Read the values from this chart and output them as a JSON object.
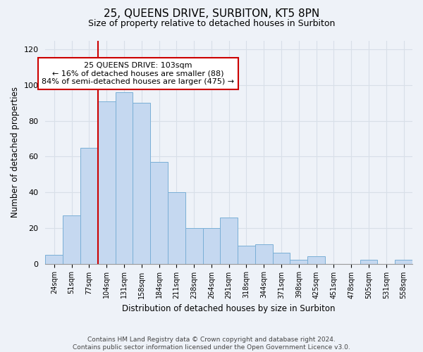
{
  "title": "25, QUEENS DRIVE, SURBITON, KT5 8PN",
  "subtitle": "Size of property relative to detached houses in Surbiton",
  "xlabel": "Distribution of detached houses by size in Surbiton",
  "ylabel": "Number of detached properties",
  "bar_labels": [
    "24sqm",
    "51sqm",
    "77sqm",
    "104sqm",
    "131sqm",
    "158sqm",
    "184sqm",
    "211sqm",
    "238sqm",
    "264sqm",
    "291sqm",
    "318sqm",
    "344sqm",
    "371sqm",
    "398sqm",
    "425sqm",
    "451sqm",
    "478sqm",
    "505sqm",
    "531sqm",
    "558sqm"
  ],
  "bar_values": [
    5,
    27,
    65,
    91,
    96,
    90,
    57,
    40,
    20,
    20,
    26,
    10,
    11,
    6,
    2,
    4,
    0,
    0,
    2,
    0,
    2
  ],
  "bar_color": "#c5d8f0",
  "bar_edge_color": "#7aafd6",
  "ylim": [
    0,
    125
  ],
  "yticks": [
    0,
    20,
    40,
    60,
    80,
    100,
    120
  ],
  "property_line_x": 2.5,
  "annotation_title": "25 QUEENS DRIVE: 103sqm",
  "annotation_line1": "← 16% of detached houses are smaller (88)",
  "annotation_line2": "84% of semi-detached houses are larger (475) →",
  "annotation_box_color": "#ffffff",
  "annotation_box_edge": "#cc0000",
  "property_line_color": "#cc0000",
  "background_color": "#eef2f8",
  "grid_color": "#d8dfe8",
  "footnote1": "Contains HM Land Registry data © Crown copyright and database right 2024.",
  "footnote2": "Contains public sector information licensed under the Open Government Licence v3.0."
}
